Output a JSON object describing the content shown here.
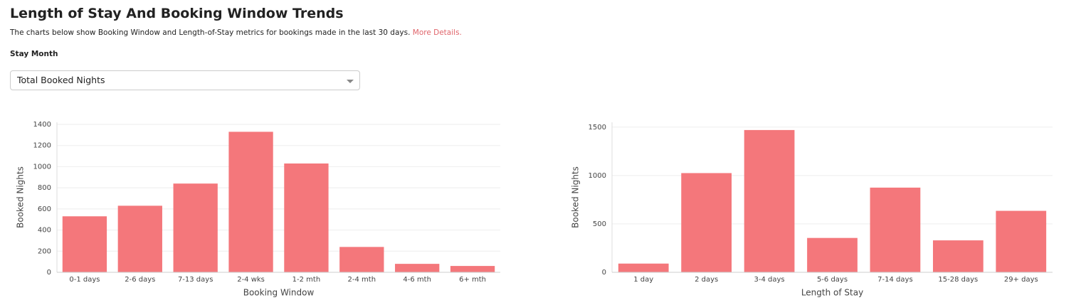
{
  "header": {
    "title": "Length of Stay And Booking Window Trends",
    "description": "The charts below show Booking Window and Length-of-Stay metrics for bookings made in the last 30 days.",
    "link": "More Details.",
    "filter_label": "Stay Month",
    "filter_value": "Total Booked Nights"
  },
  "chart_data": [
    {
      "type": "bar",
      "x_label": "Booking Window",
      "y_label": "Booked Nights",
      "categories": [
        "0-1 days",
        "2-6 days",
        "7-13 days",
        "2-4 wks",
        "1-2 mth",
        "2-4 mth",
        "4-6 mth",
        "6+ mth"
      ],
      "values": [
        530,
        630,
        840,
        1330,
        1030,
        240,
        80,
        60
      ],
      "color": "#f4777b",
      "ylim": [
        0,
        1420
      ],
      "yticks": [
        0,
        200,
        400,
        600,
        800,
        1000,
        1200,
        1400
      ],
      "grid": true
    },
    {
      "type": "bar",
      "x_label": "Length of Stay",
      "y_label": "Booked Nights",
      "categories": [
        "1 day",
        "2 days",
        "3-4 days",
        "5-6 days",
        "7-14 days",
        "15-28 days",
        "29+ days"
      ],
      "values": [
        90,
        1025,
        1470,
        355,
        875,
        330,
        635
      ],
      "color": "#f4777b",
      "ylim": [
        0,
        1550
      ],
      "yticks": [
        0,
        500,
        1000,
        1500
      ],
      "grid": true
    }
  ]
}
